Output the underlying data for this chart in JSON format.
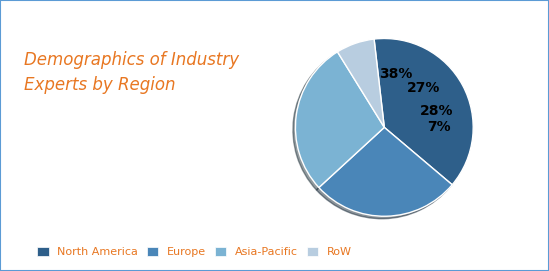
{
  "title": "Demographics of Industry\nExperts by Region",
  "title_color": "#E87722",
  "segments": [
    "North America",
    "Europe",
    "Asia-Pacific",
    "RoW"
  ],
  "values": [
    38,
    27,
    28,
    7
  ],
  "colors": [
    "#2E5F8A",
    "#4A86B8",
    "#7BB3D3",
    "#B8CDE0"
  ],
  "pct_labels": [
    "38%",
    "27%",
    "28%",
    "7%"
  ],
  "background_color": "#FFFFFF",
  "border_color": "#5B9BD5",
  "legend_labels": [
    "North America",
    "Europe",
    "Asia-Pacific",
    "RoW"
  ],
  "legend_color": "#E87722",
  "start_angle": 96.6
}
